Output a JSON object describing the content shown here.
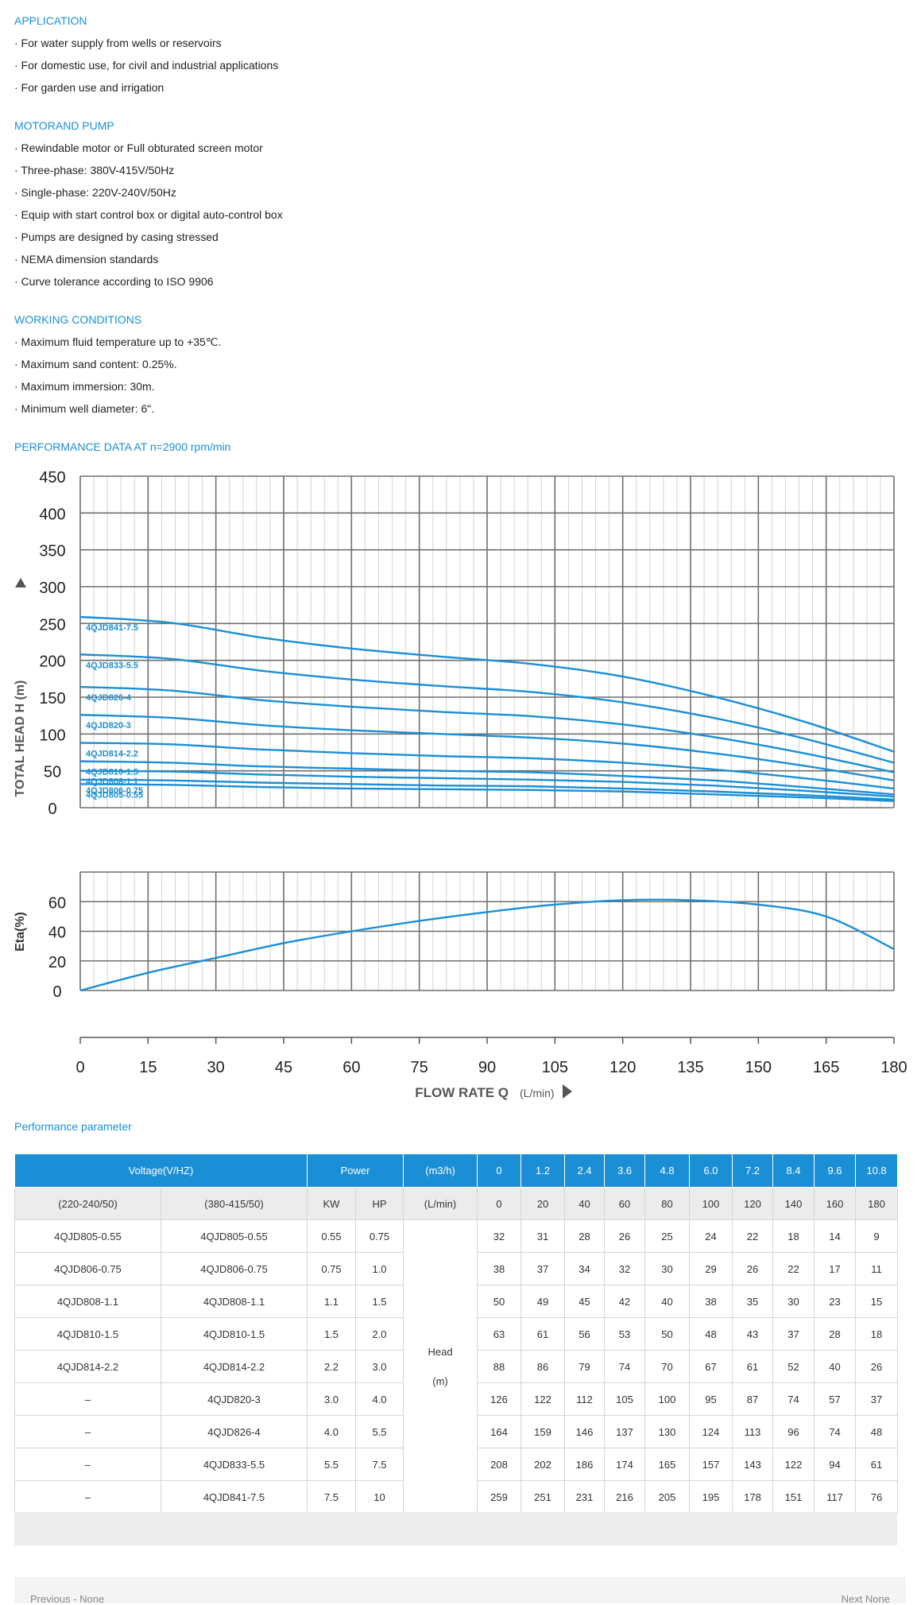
{
  "application": {
    "title": "APPLICATION",
    "items": [
      "· For water supply from wells or reservoirs",
      "· For domestic use, for civil and industrial applications",
      "· For garden use and irrigation"
    ]
  },
  "motor": {
    "title": "MOTORAND PUMP",
    "items": [
      "· Rewindable motor or Full obturated screen motor",
      "· Three-phase: 380V-415V/50Hz",
      "· Single-phase: 220V-240V/50Hz",
      "· Equip with start control box or digital auto-control box",
      "· Pumps are designed by casing stressed",
      "· NEMA dimension standards",
      "· Curve tolerance according to ISO 9906"
    ]
  },
  "working": {
    "title": "WORKING CONDITIONS",
    "items": [
      "· Maximum fluid temperature up to +35℃.",
      "· Maximum sand content: 0.25%.",
      "· Maximum immersion: 30m.",
      "· Minimum well diameter: 6\"."
    ]
  },
  "performance_title": "PERFORMANCE DATA AT n=2900 rpm/min",
  "chart_data": {
    "type": "line",
    "head_chart": {
      "ylabel": "TOTAL HEAD H (m)",
      "ylim": [
        0,
        450
      ],
      "yticks": [
        "0",
        "50",
        "100",
        "150",
        "200",
        "250",
        "300",
        "350",
        "400",
        "450"
      ],
      "series": [
        {
          "name": "4QJD841-7.5",
          "flow": [
            0,
            20,
            40,
            60,
            80,
            100,
            120,
            140,
            160,
            180
          ],
          "head": [
            259,
            251,
            231,
            216,
            205,
            195,
            178,
            151,
            117,
            76
          ]
        },
        {
          "name": "4QJD833-5.5",
          "flow": [
            0,
            20,
            40,
            60,
            80,
            100,
            120,
            140,
            160,
            180
          ],
          "head": [
            208,
            202,
            186,
            174,
            165,
            157,
            143,
            122,
            94,
            61
          ]
        },
        {
          "name": "4QJD826-4",
          "flow": [
            0,
            20,
            40,
            60,
            80,
            100,
            120,
            140,
            160,
            180
          ],
          "head": [
            164,
            159,
            146,
            137,
            130,
            124,
            113,
            96,
            74,
            48
          ]
        },
        {
          "name": "4QJD820-3",
          "flow": [
            0,
            20,
            40,
            60,
            80,
            100,
            120,
            140,
            160,
            180
          ],
          "head": [
            126,
            122,
            112,
            105,
            100,
            95,
            87,
            74,
            57,
            37
          ]
        },
        {
          "name": "4QJD814-2.2",
          "flow": [
            0,
            20,
            40,
            60,
            80,
            100,
            120,
            140,
            160,
            180
          ],
          "head": [
            88,
            86,
            79,
            74,
            70,
            67,
            61,
            52,
            40,
            26
          ]
        },
        {
          "name": "4QJD810-1.5",
          "flow": [
            0,
            20,
            40,
            60,
            80,
            100,
            120,
            140,
            160,
            180
          ],
          "head": [
            63,
            61,
            56,
            53,
            50,
            48,
            43,
            37,
            28,
            18
          ]
        },
        {
          "name": "4QJD808-1.1",
          "flow": [
            0,
            20,
            40,
            60,
            80,
            100,
            120,
            140,
            160,
            180
          ],
          "head": [
            50,
            49,
            45,
            42,
            40,
            38,
            35,
            30,
            23,
            15
          ]
        },
        {
          "name": "4QJD806-0.75",
          "flow": [
            0,
            20,
            40,
            60,
            80,
            100,
            120,
            140,
            160,
            180
          ],
          "head": [
            38,
            37,
            34,
            32,
            30,
            29,
            26,
            22,
            17,
            11
          ]
        },
        {
          "name": "4QJD805-0.55",
          "flow": [
            0,
            20,
            40,
            60,
            80,
            100,
            120,
            140,
            160,
            180
          ],
          "head": [
            32,
            31,
            28,
            26,
            25,
            24,
            22,
            18,
            14,
            9
          ]
        }
      ]
    },
    "eta_chart": {
      "ylabel": "Eta(%)",
      "ylim": [
        0,
        80
      ],
      "yticks": [
        "0",
        "20",
        "40",
        "60"
      ],
      "series": [
        {
          "name": "Eta",
          "flow": [
            0,
            15,
            30,
            45,
            60,
            75,
            90,
            105,
            120,
            135,
            150,
            165,
            180
          ],
          "eta": [
            0,
            12,
            22,
            32,
            40,
            47,
            53,
            58,
            61,
            61,
            58,
            50,
            28
          ]
        }
      ]
    },
    "xlabel": "FLOW RATE Q",
    "xunit": "(L/min)",
    "xlim": [
      0,
      180
    ],
    "xticks": [
      "0",
      "15",
      "30",
      "45",
      "60",
      "75",
      "90",
      "105",
      "120",
      "135",
      "150",
      "165",
      "180"
    ],
    "color": "#1a8fd6"
  },
  "param_title": "Performance parameter",
  "table": {
    "h_voltage": "Voltage(V/HZ)",
    "h_power": "Power",
    "h_m3h": "(m3/h)",
    "m3h_values": [
      "0",
      "1.2",
      "2.4",
      "3.6",
      "4.8",
      "6.0",
      "7.2",
      "8.4",
      "9.6",
      "10.8"
    ],
    "s_220": "(220-240/50)",
    "s_380": "(380-415/50)",
    "s_kw": "KW",
    "s_hp": "HP",
    "s_lmin": "(L/min)",
    "lmin_values": [
      "0",
      "20",
      "40",
      "60",
      "80",
      "100",
      "120",
      "140",
      "160",
      "180"
    ],
    "head_label": "Head",
    "head_unit": "(m)",
    "rows": [
      {
        "m220": "4QJD805-0.55",
        "m380": "4QJD805-0.55",
        "kw": "0.55",
        "hp": "0.75",
        "h": [
          "32",
          "31",
          "28",
          "26",
          "25",
          "24",
          "22",
          "18",
          "14",
          "9"
        ]
      },
      {
        "m220": "4QJD806-0.75",
        "m380": "4QJD806-0.75",
        "kw": "0.75",
        "hp": "1.0",
        "h": [
          "38",
          "37",
          "34",
          "32",
          "30",
          "29",
          "26",
          "22",
          "17",
          "11"
        ]
      },
      {
        "m220": "4QJD808-1.1",
        "m380": "4QJD808-1.1",
        "kw": "1.1",
        "hp": "1.5",
        "h": [
          "50",
          "49",
          "45",
          "42",
          "40",
          "38",
          "35",
          "30",
          "23",
          "15"
        ]
      },
      {
        "m220": "4QJD810-1.5",
        "m380": "4QJD810-1.5",
        "kw": "1.5",
        "hp": "2.0",
        "h": [
          "63",
          "61",
          "56",
          "53",
          "50",
          "48",
          "43",
          "37",
          "28",
          "18"
        ]
      },
      {
        "m220": "4QJD814-2.2",
        "m380": "4QJD814-2.2",
        "kw": "2.2",
        "hp": "3.0",
        "h": [
          "88",
          "86",
          "79",
          "74",
          "70",
          "67",
          "61",
          "52",
          "40",
          "26"
        ]
      },
      {
        "m220": "–",
        "m380": "4QJD820-3",
        "kw": "3.0",
        "hp": "4.0",
        "h": [
          "126",
          "122",
          "112",
          "105",
          "100",
          "95",
          "87",
          "74",
          "57",
          "37"
        ]
      },
      {
        "m220": "–",
        "m380": "4QJD826-4",
        "kw": "4.0",
        "hp": "5.5",
        "h": [
          "164",
          "159",
          "146",
          "137",
          "130",
          "124",
          "113",
          "96",
          "74",
          "48"
        ]
      },
      {
        "m220": "–",
        "m380": "4QJD833-5.5",
        "kw": "5.5",
        "hp": "7.5",
        "h": [
          "208",
          "202",
          "186",
          "174",
          "165",
          "157",
          "143",
          "122",
          "94",
          "61"
        ]
      },
      {
        "m220": "–",
        "m380": "4QJD841-7.5",
        "kw": "7.5",
        "hp": "10",
        "h": [
          "259",
          "251",
          "231",
          "216",
          "205",
          "195",
          "178",
          "151",
          "117",
          "76"
        ]
      }
    ]
  },
  "pager": {
    "previous": "Previous - None",
    "next": "Next None"
  }
}
